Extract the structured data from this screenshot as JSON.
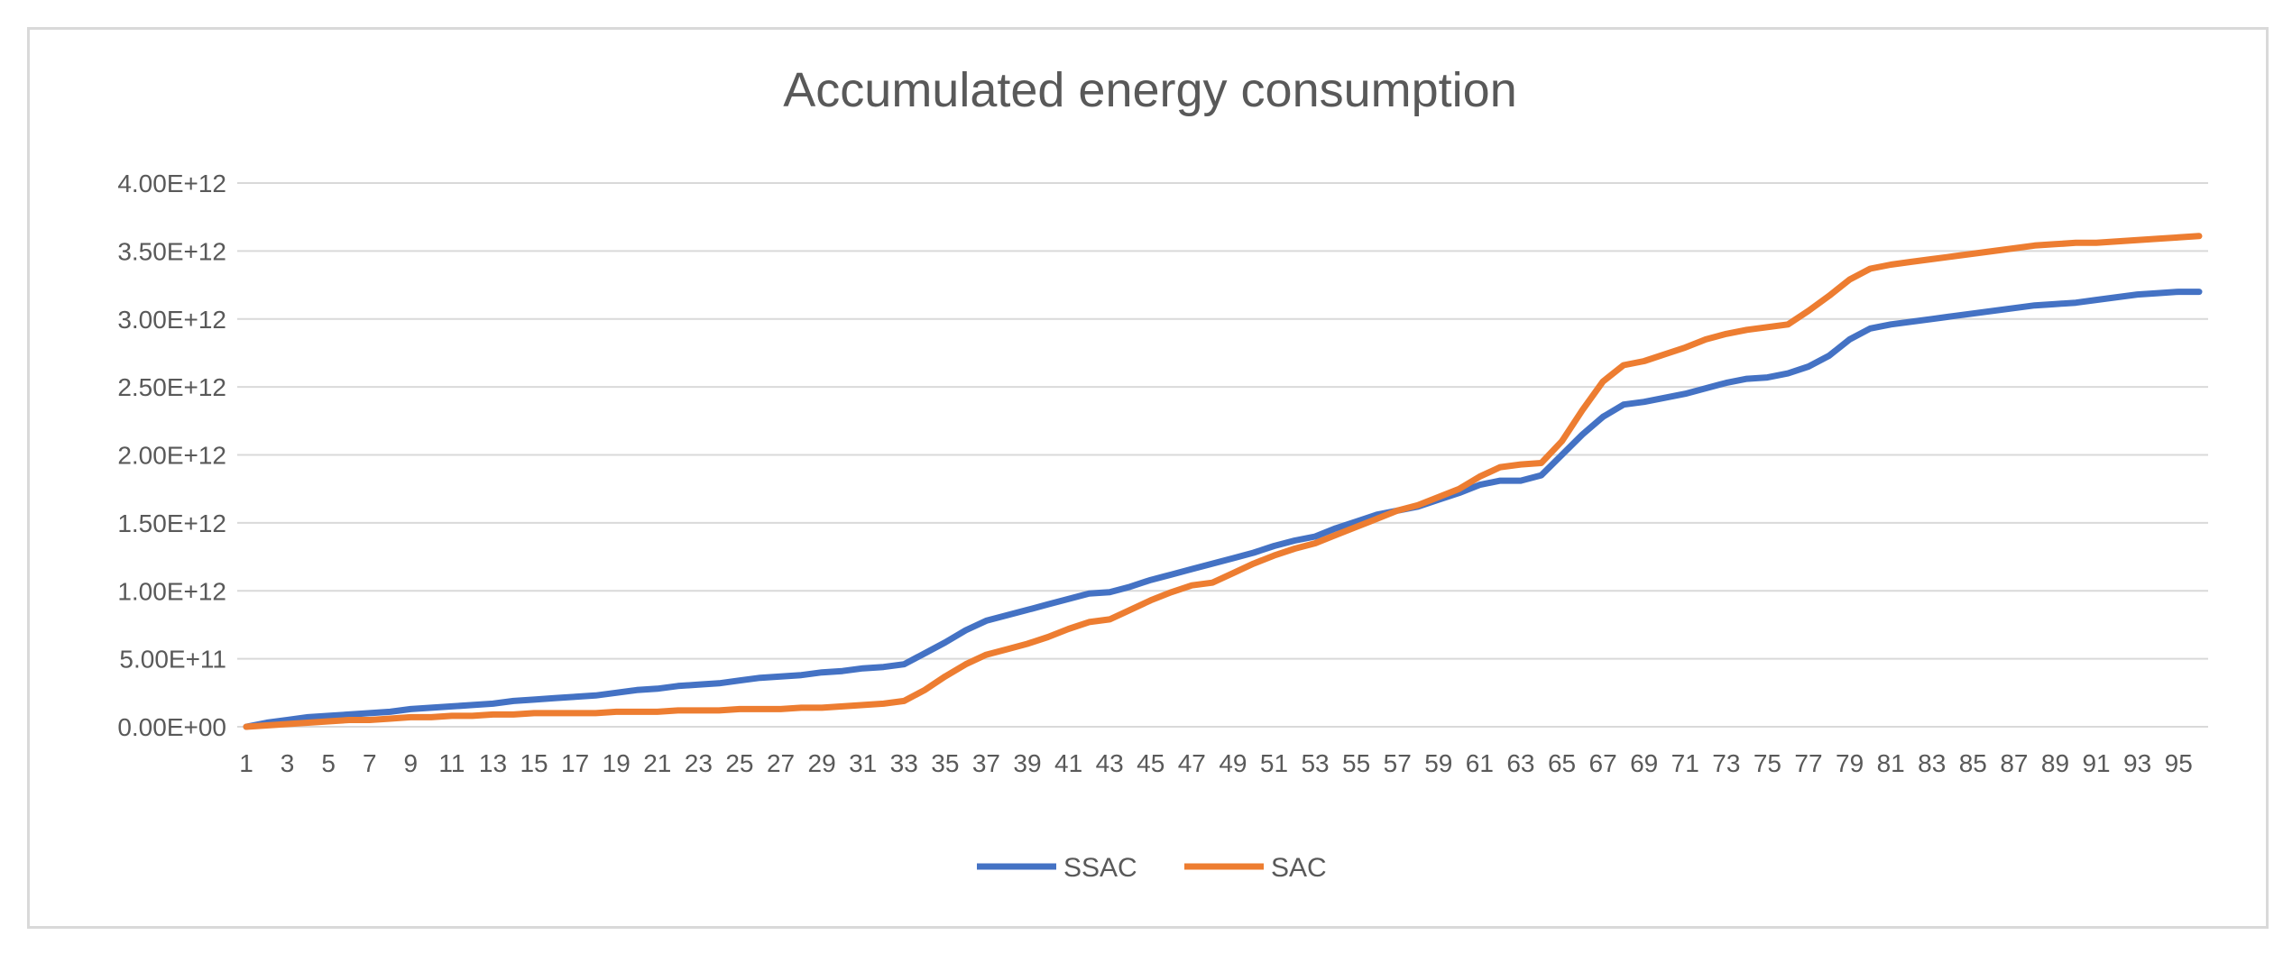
{
  "chart_data": {
    "type": "line",
    "title": "Accumulated energy consumption",
    "xlabel": "",
    "ylabel": "",
    "ylim": [
      0,
      4000000000000
    ],
    "y_ticks": [
      0,
      500000000000,
      1000000000000,
      1500000000000,
      2000000000000,
      2500000000000,
      3000000000000,
      3500000000000,
      4000000000000
    ],
    "y_tick_labels": [
      "0.00E+00",
      "5.00E+11",
      "1.00E+12",
      "1.50E+12",
      "2.00E+12",
      "2.50E+12",
      "3.00E+12",
      "3.50E+12",
      "4.00E+12"
    ],
    "x_tick_labels": [
      "1",
      "3",
      "5",
      "7",
      "9",
      "11",
      "13",
      "15",
      "17",
      "19",
      "21",
      "23",
      "25",
      "27",
      "29",
      "31",
      "33",
      "35",
      "37",
      "39",
      "41",
      "43",
      "45",
      "47",
      "49",
      "51",
      "53",
      "55",
      "57",
      "59",
      "61",
      "63",
      "65",
      "67",
      "69",
      "71",
      "73",
      "75",
      "77",
      "79",
      "81",
      "83",
      "85",
      "87",
      "89",
      "91",
      "93",
      "95"
    ],
    "x_count": 96,
    "grid": true,
    "legend_position": "bottom",
    "series": [
      {
        "name": "SSAC",
        "color": "#4472c4",
        "values": [
          0,
          0.03,
          0.05,
          0.07,
          0.08,
          0.09,
          0.1,
          0.11,
          0.13,
          0.14,
          0.15,
          0.16,
          0.17,
          0.19,
          0.2,
          0.21,
          0.22,
          0.23,
          0.25,
          0.27,
          0.28,
          0.3,
          0.31,
          0.32,
          0.34,
          0.36,
          0.37,
          0.38,
          0.4,
          0.41,
          0.43,
          0.44,
          0.46,
          0.54,
          0.62,
          0.71,
          0.78,
          0.82,
          0.86,
          0.9,
          0.94,
          0.98,
          0.99,
          1.03,
          1.08,
          1.12,
          1.16,
          1.2,
          1.24,
          1.28,
          1.33,
          1.37,
          1.4,
          1.46,
          1.51,
          1.56,
          1.59,
          1.62,
          1.67,
          1.72,
          1.78,
          1.81,
          1.81,
          1.85,
          2,
          2.15,
          2.28,
          2.37,
          2.39,
          2.42,
          2.45,
          2.49,
          2.53,
          2.56,
          2.57,
          2.6,
          2.65,
          2.73,
          2.85,
          2.93,
          2.96,
          2.98,
          3,
          3.02,
          3.04,
          3.06,
          3.08,
          3.1,
          3.11,
          3.12,
          3.14,
          3.16,
          3.18,
          3.19,
          3.2,
          3.2
        ]
      },
      {
        "name": "SAC",
        "color": "#ed7d31",
        "values": [
          0,
          0.01,
          0.02,
          0.03,
          0.04,
          0.05,
          0.05,
          0.06,
          0.07,
          0.07,
          0.08,
          0.08,
          0.09,
          0.09,
          0.1,
          0.1,
          0.1,
          0.1,
          0.11,
          0.11,
          0.11,
          0.12,
          0.12,
          0.12,
          0.13,
          0.13,
          0.13,
          0.14,
          0.14,
          0.15,
          0.16,
          0.17,
          0.19,
          0.27,
          0.37,
          0.46,
          0.53,
          0.57,
          0.61,
          0.66,
          0.72,
          0.77,
          0.79,
          0.86,
          0.93,
          0.99,
          1.04,
          1.06,
          1.13,
          1.2,
          1.26,
          1.31,
          1.35,
          1.41,
          1.47,
          1.53,
          1.59,
          1.63,
          1.69,
          1.75,
          1.84,
          1.91,
          1.93,
          1.94,
          2.1,
          2.33,
          2.54,
          2.66,
          2.69,
          2.74,
          2.79,
          2.85,
          2.89,
          2.92,
          2.94,
          2.96,
          3.06,
          3.17,
          3.29,
          3.37,
          3.4,
          3.42,
          3.44,
          3.46,
          3.48,
          3.5,
          3.52,
          3.54,
          3.55,
          3.56,
          3.56,
          3.57,
          3.58,
          3.59,
          3.6,
          3.61
        ]
      }
    ]
  }
}
